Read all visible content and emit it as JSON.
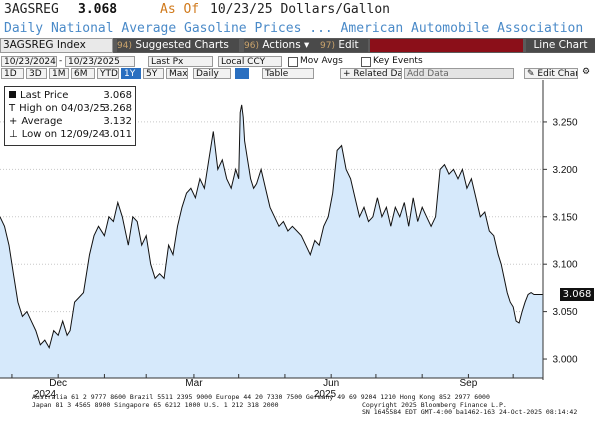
{
  "header": {
    "ticker": "3AGSREG",
    "last": "3.068",
    "asof_label": "As Of",
    "asof_value": "10/23/25 Dollars/Gallon",
    "description": "Daily National Average Gasoline Prices ... American Automobile Association"
  },
  "toolbar": {
    "index": "3AGSREG Index",
    "suggested_num": "94)",
    "suggested": "Suggested Charts",
    "actions_num": "96)",
    "actions": "Actions",
    "edit_num": "97)",
    "edit": "Edit",
    "line_chart": "Line Chart"
  },
  "controls": {
    "start_date": "10/23/2024",
    "end_date": "10/23/2025",
    "field": "Last Px",
    "currency": "Local CCY",
    "mov_avgs": "Mov Avgs",
    "key_events": "Key Events",
    "periods": [
      "1D",
      "3D",
      "1M",
      "6M",
      "YTD",
      "1Y",
      "5Y",
      "Max"
    ],
    "selected_period": "1Y",
    "frequency": "Daily",
    "table": "Table",
    "related": "Related Dat",
    "add_data": "Add Data",
    "edit_chart": "Edit Chart"
  },
  "legend": {
    "last_label": "Last Price",
    "last_value": "3.068",
    "high_label": "High on 04/03/25",
    "high_value": "3.268",
    "avg_label": "Average",
    "avg_value": "3.132",
    "low_label": "Low on 12/09/24",
    "low_value": "3.011"
  },
  "last_badge": "3.068",
  "footer": {
    "line1": "Australia 61 2 9777 8600 Brazil 5511 2395 9000 Europe 44 20 7330 7500 Germany 49 69 9204 1210 Hong Kong 852 2977 6000",
    "line2": "Japan 81 3 4565 8900         Singapore 65 6212 1000       U.S. 1 212 318 2000",
    "line3": "Copyright 2025 Bloomberg Finance L.P.",
    "line4": "SN 1645584 EDT  GMT-4:00 ba1462-163 24-Oct-2025 08:14:42"
  },
  "colors": {
    "fill": "#d6e9fb",
    "line": "#111111",
    "grid": "#c8c8c8",
    "asof": "#d07a1c",
    "desc": "#4a8ac8",
    "red_bar": "#8b0f19"
  },
  "chart_data": {
    "type": "area",
    "x_tick_labels": [
      "Dec",
      "Mar",
      "Jun",
      "Sep"
    ],
    "x_year_labels": [
      "2024",
      "2025"
    ],
    "y_tick_labels": [
      "3.000",
      "3.050",
      "3.100",
      "3.150",
      "3.200",
      "3.250"
    ],
    "ylim": [
      2.98,
      3.29
    ],
    "y_axis": "right",
    "grid": "horizontal-dotted",
    "series": [
      {
        "x": [
          0,
          3,
          6,
          9,
          12,
          15,
          18,
          21,
          24,
          27,
          30,
          33,
          36,
          39,
          42,
          45,
          47,
          50,
          53,
          56,
          60,
          63,
          66,
          70,
          73,
          76,
          79,
          82,
          86,
          89,
          92,
          95,
          98,
          101,
          104,
          107,
          110,
          113,
          116,
          119,
          122,
          125,
          128,
          131,
          134,
          137,
          140,
          143,
          146,
          149,
          152,
          155,
          158,
          160,
          161,
          162,
          163,
          164,
          166,
          168,
          170,
          172,
          175,
          178,
          181,
          184,
          187,
          190,
          193,
          196,
          199,
          202,
          205,
          208,
          211,
          214,
          217,
          220,
          223,
          226,
          229,
          232,
          235,
          238,
          241,
          244,
          247,
          250,
          253,
          256,
          259,
          262,
          265,
          268,
          271,
          274,
          277,
          280,
          283,
          286,
          289,
          292,
          295,
          298,
          301,
          304,
          307,
          310,
          313,
          316,
          319,
          322,
          325,
          328,
          331,
          334,
          336,
          338,
          340,
          342,
          344,
          346,
          348,
          350,
          352,
          354,
          356,
          358,
          360,
          362,
          364
        ],
        "values": [
          3.15,
          3.14,
          3.12,
          3.09,
          3.06,
          3.045,
          3.05,
          3.04,
          3.03,
          3.015,
          3.02,
          3.012,
          3.03,
          3.025,
          3.04,
          3.025,
          3.03,
          3.06,
          3.065,
          3.07,
          3.11,
          3.13,
          3.14,
          3.13,
          3.15,
          3.145,
          3.165,
          3.15,
          3.12,
          3.15,
          3.145,
          3.12,
          3.13,
          3.1,
          3.085,
          3.09,
          3.085,
          3.12,
          3.11,
          3.14,
          3.16,
          3.175,
          3.18,
          3.17,
          3.19,
          3.18,
          3.21,
          3.24,
          3.2,
          3.21,
          3.19,
          3.18,
          3.2,
          3.19,
          3.26,
          3.268,
          3.255,
          3.23,
          3.21,
          3.19,
          3.18,
          3.185,
          3.2,
          3.18,
          3.16,
          3.15,
          3.14,
          3.145,
          3.135,
          3.14,
          3.135,
          3.13,
          3.12,
          3.11,
          3.125,
          3.12,
          3.14,
          3.15,
          3.175,
          3.22,
          3.225,
          3.2,
          3.19,
          3.17,
          3.15,
          3.16,
          3.145,
          3.15,
          3.17,
          3.15,
          3.16,
          3.14,
          3.16,
          3.15,
          3.165,
          3.14,
          3.17,
          3.145,
          3.16,
          3.15,
          3.14,
          3.15,
          3.2,
          3.205,
          3.195,
          3.2,
          3.19,
          3.2,
          3.18,
          3.19,
          3.17,
          3.15,
          3.155,
          3.135,
          3.13,
          3.11,
          3.1,
          3.085,
          3.07,
          3.06,
          3.055,
          3.04,
          3.038,
          3.05,
          3.06,
          3.068,
          3.07,
          3.068,
          3.068,
          3.068,
          3.068
        ]
      }
    ]
  }
}
